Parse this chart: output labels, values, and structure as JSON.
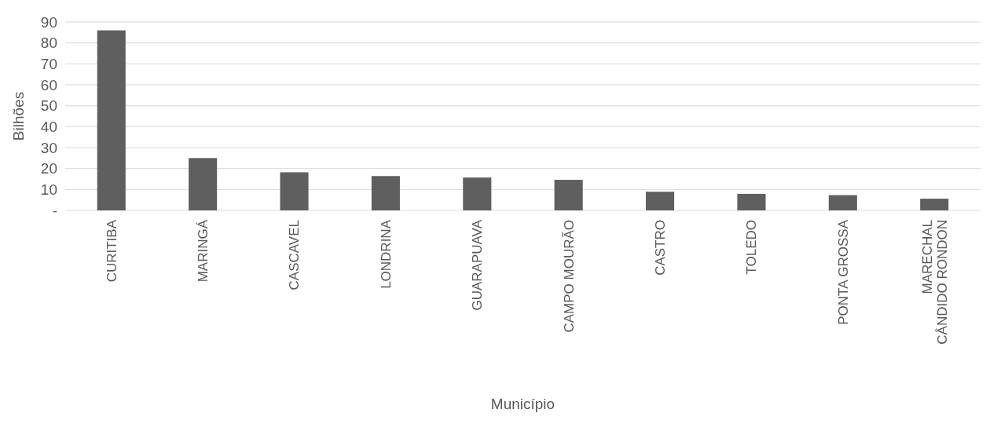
{
  "chart_data": {
    "type": "bar",
    "xlabel": "Município",
    "ylabel": "Bilhões",
    "categories": [
      "CURITIBA",
      "MARINGÁ",
      "CASCAVEL",
      "LONDRINA",
      "GUARAPUAVA",
      "CAMPO MOURÃO",
      "CASTRO",
      "TOLEDO",
      "PONTA GROSSA",
      "MARECHAL CÂNDIDO RONDON"
    ],
    "values": [
      86,
      25,
      18.2,
      16.4,
      15.7,
      14.6,
      8.9,
      7.9,
      7.3,
      5.6
    ],
    "color": "#5f5f5f",
    "ylim": [
      0,
      90
    ],
    "yticks": [
      {
        "value": 0,
        "label": "-"
      },
      10,
      20,
      30,
      40,
      50,
      60,
      70,
      80,
      90
    ],
    "grid": "y"
  }
}
